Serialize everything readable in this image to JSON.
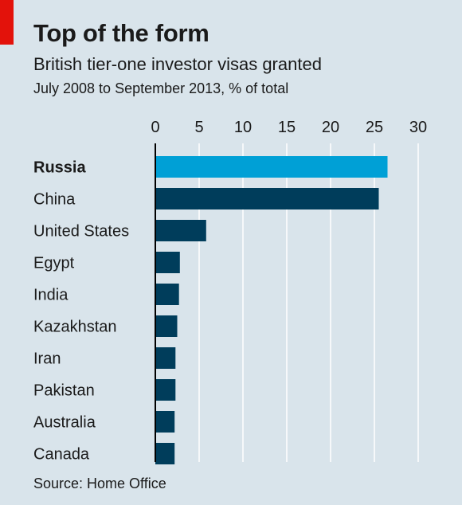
{
  "header": {
    "title": "Top of the form",
    "subtitle": "British tier-one investor visas granted",
    "subsubtitle": "July 2008 to September 2013, % of total"
  },
  "source": "Source: Home Office",
  "colors": {
    "background": "#d9e4eb",
    "accent": "#e3120b",
    "highlight_bar": "#00a0d6",
    "bar": "#003d5b",
    "grid": "#ffffff",
    "axis": "#000000",
    "text": "#1a1a1a"
  },
  "chart_data": {
    "type": "bar",
    "orientation": "horizontal",
    "title": "Top of the form",
    "subtitle": "British tier-one investor visas granted",
    "unit_note": "July 2008 to September 2013, % of total",
    "categories": [
      "Russia",
      "China",
      "United States",
      "Egypt",
      "India",
      "Kazakhstan",
      "Iran",
      "Pakistan",
      "Australia",
      "Canada"
    ],
    "values": [
      26.5,
      25.5,
      5.8,
      2.8,
      2.7,
      2.5,
      2.3,
      2.3,
      2.2,
      2.2
    ],
    "highlight": "Russia",
    "xlim": [
      0,
      30
    ],
    "xticks": [
      0,
      5,
      10,
      15,
      20,
      25,
      30
    ],
    "xaxis_position": "top",
    "grid": true,
    "legend": "none"
  }
}
